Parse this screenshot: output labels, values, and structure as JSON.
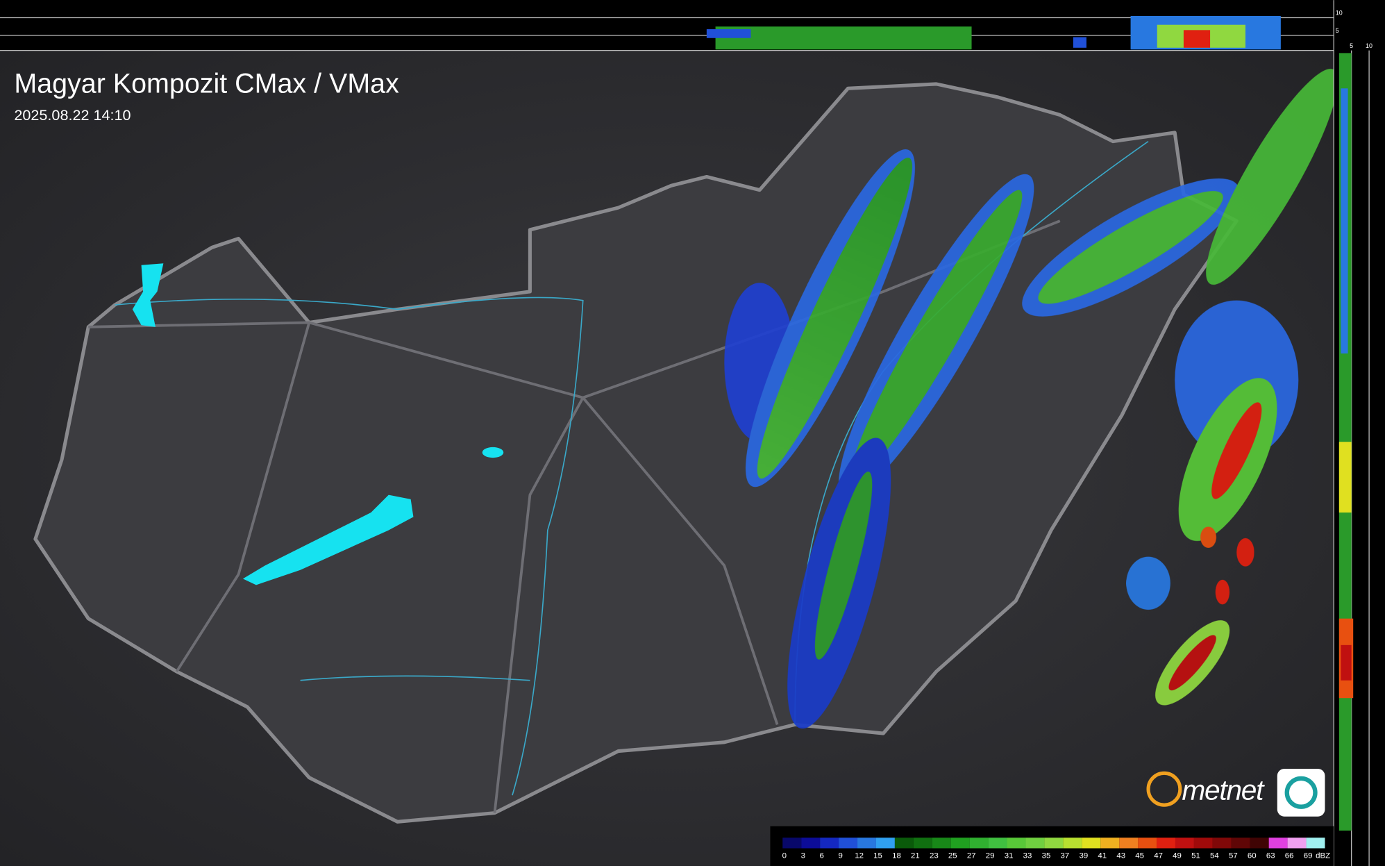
{
  "header": {
    "title": "Magyar Kompozit CMax / VMax",
    "timestamp": "2025.08.22 14:10"
  },
  "profile_top": {
    "ticks": [
      10,
      5
    ]
  },
  "profile_right": {
    "ticks": [
      5,
      10
    ]
  },
  "logo": {
    "text": "metnet"
  },
  "legend": {
    "unit": "dBZ",
    "ticks": [
      0,
      3,
      6,
      9,
      12,
      15,
      18,
      21,
      23,
      25,
      27,
      29,
      31,
      33,
      35,
      37,
      39,
      41,
      43,
      45,
      47,
      49,
      51,
      54,
      57,
      60,
      63,
      66,
      69
    ],
    "colors": [
      "#08086a",
      "#0c0c98",
      "#1428c0",
      "#2050d8",
      "#2878e0",
      "#30a0f0",
      "#0a5a0a",
      "#107010",
      "#188818",
      "#20a020",
      "#30b030",
      "#40c040",
      "#58c838",
      "#70d040",
      "#90d840",
      "#b8e030",
      "#e0e020",
      "#f0b020",
      "#f08020",
      "#e85010",
      "#e02010",
      "#c01010",
      "#a00a0a",
      "#800808",
      "#600606",
      "#400404",
      "#e040e0",
      "#f0a0f0",
      "#a0f0f0"
    ]
  }
}
